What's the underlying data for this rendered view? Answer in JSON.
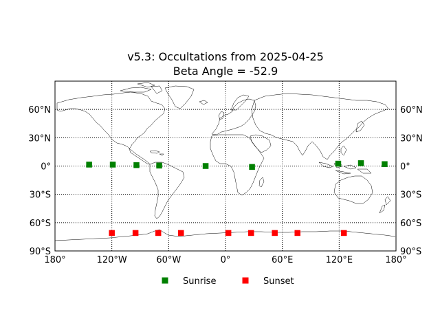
{
  "chart_data": {
    "type": "scatter",
    "title_line1": "v5.3: Occultations from 2025-04-25",
    "title_line2": "Beta Angle = -52.9",
    "projection": "equirectangular",
    "xlim": [
      -180,
      180
    ],
    "ylim": [
      -90,
      90
    ],
    "grid": true,
    "x_ticks": [
      {
        "value": -180,
        "label": "180°"
      },
      {
        "value": -120,
        "label": "120°W"
      },
      {
        "value": -60,
        "label": "60°W"
      },
      {
        "value": 0,
        "label": "0°"
      },
      {
        "value": 60,
        "label": "60°E"
      },
      {
        "value": 120,
        "label": "120°E"
      },
      {
        "value": 180,
        "label": "180°"
      }
    ],
    "y_ticks": [
      {
        "value": 60,
        "label": "60°N"
      },
      {
        "value": 30,
        "label": "30°N"
      },
      {
        "value": 0,
        "label": "0°"
      },
      {
        "value": -30,
        "label": "30°S"
      },
      {
        "value": -60,
        "label": "60°S"
      },
      {
        "value": -90,
        "label": "90°S"
      }
    ],
    "legend_position": "bottom-center",
    "series": [
      {
        "name": "Sunrise",
        "color": "#008000",
        "marker": "square",
        "points": [
          {
            "lon": -144,
            "lat": 1.5
          },
          {
            "lon": -119,
            "lat": 1.5
          },
          {
            "lon": -94,
            "lat": 1.0
          },
          {
            "lon": -70,
            "lat": 0.5
          },
          {
            "lon": -21,
            "lat": 0.0
          },
          {
            "lon": 28,
            "lat": -1.0
          },
          {
            "lon": 119,
            "lat": 2.5
          },
          {
            "lon": 143,
            "lat": 3.0
          },
          {
            "lon": 168,
            "lat": 2.0
          }
        ]
      },
      {
        "name": "Sunset",
        "color": "#ff0000",
        "marker": "square",
        "points": [
          {
            "lon": -120,
            "lat": -71
          },
          {
            "lon": -95,
            "lat": -71
          },
          {
            "lon": -71,
            "lat": -71
          },
          {
            "lon": -47,
            "lat": -71
          },
          {
            "lon": 3,
            "lat": -71
          },
          {
            "lon": 27,
            "lat": -71
          },
          {
            "lon": 52,
            "lat": -71
          },
          {
            "lon": 76,
            "lat": -71
          },
          {
            "lon": 125,
            "lat": -71
          }
        ]
      }
    ],
    "coastlines_color": "#000000"
  }
}
